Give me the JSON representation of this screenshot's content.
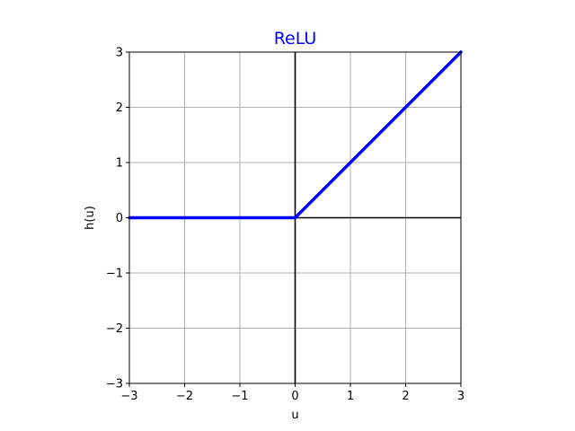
{
  "chart_data": {
    "type": "line",
    "title": "ReLU",
    "title_color": "#0000ff",
    "xlabel": "u",
    "ylabel": "h(u)",
    "xlim": [
      -3,
      3
    ],
    "ylim": [
      -3,
      3
    ],
    "xticks": [
      -3,
      -2,
      -1,
      0,
      1,
      2,
      3
    ],
    "yticks": [
      -3,
      -2,
      -1,
      0,
      1,
      2,
      3
    ],
    "xtick_labels": [
      "−3",
      "−2",
      "−1",
      "0",
      "1",
      "2",
      "3"
    ],
    "ytick_labels": [
      "−3",
      "−2",
      "−1",
      "0",
      "1",
      "2",
      "3"
    ],
    "grid": true,
    "reference_lines": {
      "x": 0,
      "y": 0,
      "color": "#000000"
    },
    "series": [
      {
        "color": "#0000ff",
        "x": [
          -3,
          -2,
          -1,
          0,
          1,
          2,
          3
        ],
        "y": [
          0,
          0,
          0,
          0,
          1,
          2,
          3
        ]
      }
    ]
  }
}
